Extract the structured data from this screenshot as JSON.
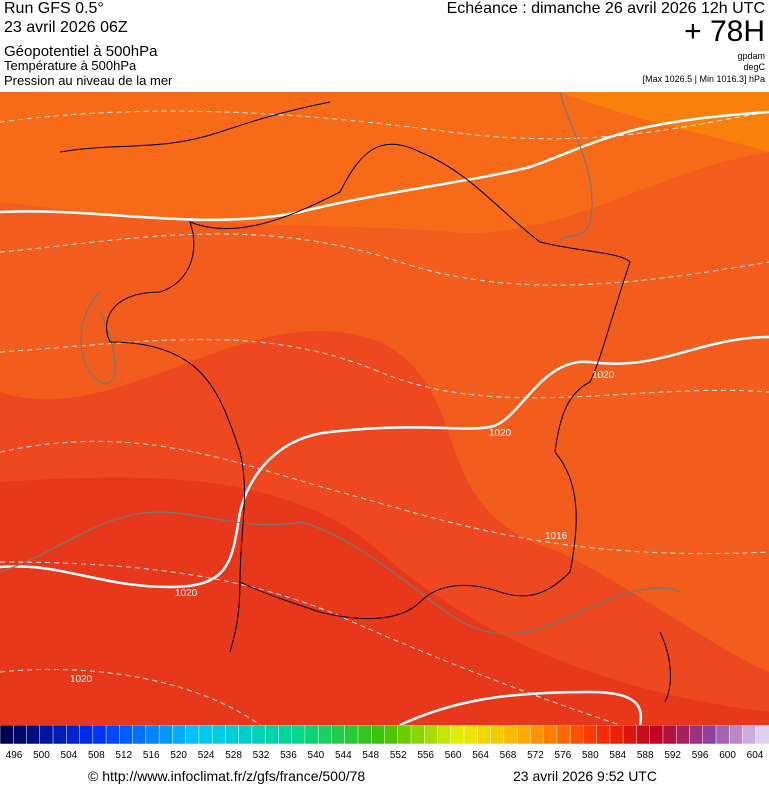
{
  "header": {
    "run": "Run GFS 0.5°",
    "run_date": "23 avril 2026 06Z",
    "layer1": "Géopotentiel à 500hPa",
    "layer2": "Température à 500hPa",
    "layer3": "Pression au niveau de la mer",
    "forecast": "Echéance : dimanche 26 avril 2026 12h UTC",
    "lead": "+ 78H",
    "unit1": "gpdam",
    "unit2": "degC",
    "range": "[Max 1026.5 | Min 1016.3] hPa"
  },
  "map": {
    "labels": [
      "1020",
      "1020",
      "1020",
      "1020",
      "1016"
    ]
  },
  "colorbar": {
    "ticks": [
      496,
      500,
      504,
      508,
      512,
      516,
      520,
      524,
      528,
      532,
      536,
      540,
      544,
      548,
      552,
      556,
      560,
      564,
      568,
      572,
      576,
      580,
      584,
      588,
      592,
      596,
      600,
      604
    ]
  },
  "footer": {
    "source": "© http://www.infoclimat.fr/z/gfs/france/500/78",
    "generated": "23 avril 2026  9:52 UTC"
  }
}
